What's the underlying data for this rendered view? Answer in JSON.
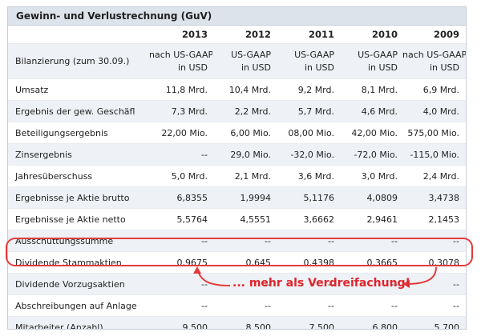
{
  "panel": {
    "title": "Gewinn- und Verlustrechnung (GuV)"
  },
  "years": [
    "2013",
    "2012",
    "2011",
    "2010",
    "2009"
  ],
  "subheader": {
    "label": "Bilanzierung (zum 30.09.)",
    "values": [
      [
        "nach US-GAAP",
        "in USD"
      ],
      [
        "US-GAAP",
        "in USD"
      ],
      [
        "US-GAAP",
        "in USD"
      ],
      [
        "US-GAAP",
        "in USD"
      ],
      [
        "nach US-GAAP",
        "in USD"
      ]
    ]
  },
  "rows": [
    {
      "label": "Umsatz",
      "values": [
        "11,8 Mrd.",
        "10,4 Mrd.",
        "9,2 Mrd.",
        "8,1 Mrd.",
        "6,9 Mrd."
      ]
    },
    {
      "label": "Ergebnis der gew. Geschäfl",
      "values": [
        "7,3 Mrd.",
        "2,2 Mrd.",
        "5,7 Mrd.",
        "4,6 Mrd.",
        "4,0 Mrd."
      ]
    },
    {
      "label": "Beteiligungsergebnis",
      "values": [
        "22,00 Mio.",
        "6,00 Mio.",
        "08,00 Mio.",
        "42,00 Mio.",
        "575,00 Mio."
      ]
    },
    {
      "label": "Zinsergebnis",
      "values": [
        "--",
        "29,0 Mio.",
        "-32,0 Mio.",
        "-72,0 Mio.",
        "-115,0 Mio."
      ]
    },
    {
      "label": "Jahresüberschuss",
      "values": [
        "5,0 Mrd.",
        "2,1 Mrd.",
        "3,6 Mrd.",
        "3,0 Mrd.",
        "2,4 Mrd."
      ]
    },
    {
      "label": "Ergebnisse je Aktie brutto",
      "values": [
        "6,8355",
        "1,9994",
        "5,1176",
        "4,0809",
        "3,4738"
      ]
    },
    {
      "label": "Ergebnisse je Aktie netto",
      "values": [
        "5,5764",
        "4,5551",
        "3,6662",
        "2,9461",
        "2,1453"
      ]
    },
    {
      "label": "Ausschüttungssumme",
      "values": [
        "--",
        "--",
        "--",
        "--",
        "--"
      ]
    },
    {
      "label": "Dividende Stammaktien",
      "values": [
        "0,9675",
        "0,645",
        "0,4398",
        "0,3665",
        "0,3078"
      ]
    },
    {
      "label": "Dividende Vorzugsaktien",
      "values": [
        "--",
        "--",
        "--",
        "--",
        "--"
      ]
    },
    {
      "label": "Abschreibungen auf Anlage",
      "values": [
        "--",
        "--",
        "--",
        "--",
        "--"
      ]
    },
    {
      "label": "Mitarbeiter (Anzahl)",
      "values": [
        "9.500",
        "8.500",
        "7.500",
        "6.800",
        "5.700"
      ]
    }
  ],
  "annotation": {
    "text": "... mehr als Verdreifachung!",
    "color": "#e0232a"
  }
}
